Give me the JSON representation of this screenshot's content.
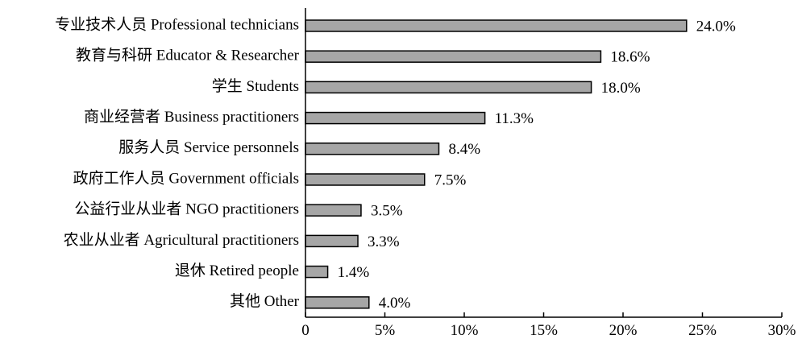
{
  "chart_data": {
    "type": "bar",
    "orientation": "horizontal",
    "categories": [
      "专业技术人员 Professional technicians",
      "教育与科研 Educator & Researcher",
      "学生 Students",
      "商业经营者 Business practitioners",
      "服务人员 Service personnels",
      "政府工作人员 Government officials",
      "公益行业从业者 NGO practitioners",
      "农业从业者 Agricultural practitioners",
      "退休 Retired people",
      "其他 Other"
    ],
    "values": [
      24.0,
      18.6,
      18.0,
      11.3,
      8.4,
      7.5,
      3.5,
      3.3,
      1.4,
      4.0
    ],
    "value_labels": [
      "24.0%",
      "18.6%",
      "18.0%",
      "11.3%",
      "8.4%",
      "7.5%",
      "3.5%",
      "3.3%",
      "1.4%",
      "4.0%"
    ],
    "xlim": [
      0,
      30
    ],
    "xticks": [
      0,
      5,
      10,
      15,
      20,
      25,
      30
    ],
    "xtick_labels": [
      "0",
      "5%",
      "10%",
      "15%",
      "20%",
      "25%",
      "30%"
    ],
    "bar_color": "#a6a6a6",
    "grid": false,
    "title": "",
    "xlabel": "",
    "ylabel": ""
  }
}
